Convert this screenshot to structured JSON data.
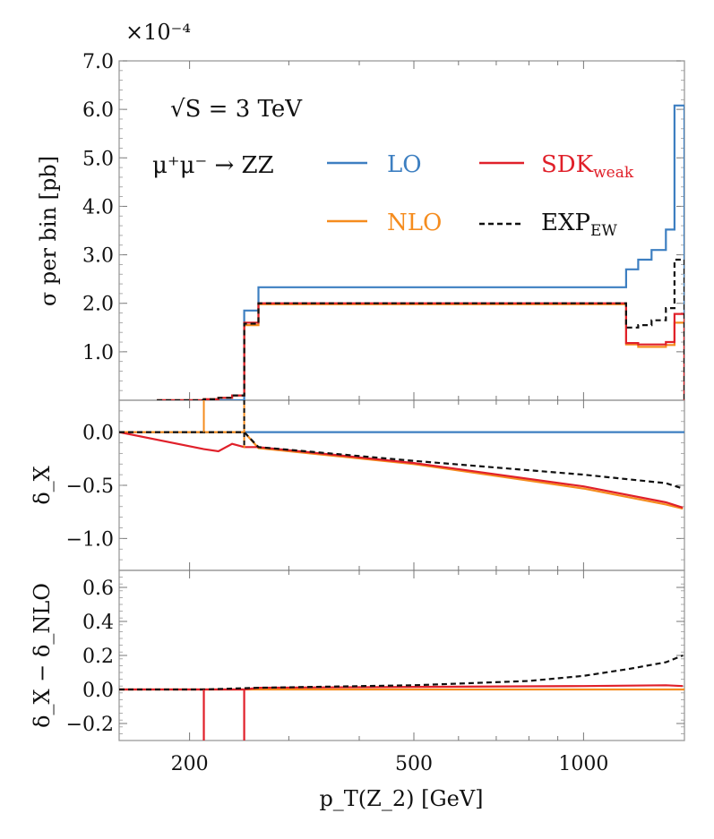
{
  "colors": {
    "LO": "#3d7fc1",
    "NLO": "#f58c1e",
    "SDK": "#e0202a",
    "EXP": "#111111"
  },
  "chart_data": {
    "type": "line",
    "xscale": "log",
    "x_ticks": [
      200,
      500,
      1000
    ],
    "x_tick_labels": [
      "200",
      "500",
      "1000"
    ],
    "xlabel": "p_T(Z_2) [GeV]",
    "xlim": [
      150,
      1510
    ],
    "annotation_energy": "√S = 3 TeV",
    "annotation_process": "μ⁺μ⁻ → ZZ",
    "legend": [
      {
        "name": "LO",
        "color": "#3d7fc1",
        "style": "solid"
      },
      {
        "name": "SDK_weak",
        "color": "#e0202a",
        "style": "solid"
      },
      {
        "name": "NLO",
        "color": "#f58c1e",
        "style": "solid"
      },
      {
        "name": "EXP_EW",
        "color": "#111111",
        "style": "dashed"
      }
    ],
    "panels": [
      {
        "id": "top",
        "ylabel": "σ per bin [pb]",
        "multiplier": "×10⁻⁴",
        "ylim": [
          0,
          7.0
        ],
        "y_ticks": [
          1.0,
          2.0,
          3.0,
          4.0,
          5.0,
          6.0,
          7.0
        ],
        "y_tick_labels": [
          "1.0",
          "2.0",
          "3.0",
          "4.0",
          "5.0",
          "6.0",
          "7.0"
        ],
        "series": [
          {
            "name": "LO",
            "edges": [
              175,
              200,
              212,
              225,
              238,
              250,
              265,
              1190,
              1250,
              1320,
              1400,
              1450,
              1510
            ],
            "values": [
              0,
              0,
              0,
              0,
              0,
              1.85,
              2.33,
              2.7,
              2.9,
              3.1,
              3.52,
              6.08
            ]
          },
          {
            "name": "NLO",
            "edges": [
              175,
              200,
              212,
              225,
              238,
              250,
              265,
              1190,
              1250,
              1320,
              1400,
              1450,
              1510
            ],
            "values": [
              0,
              0,
              0.02,
              0.05,
              0.1,
              1.55,
              1.98,
              1.15,
              1.1,
              1.1,
              1.14,
              1.6
            ]
          },
          {
            "name": "SDK_weak",
            "edges": [
              175,
              200,
              212,
              225,
              238,
              250,
              265,
              1190,
              1250,
              1320,
              1400,
              1450,
              1510
            ],
            "values": [
              0,
              0,
              0.02,
              0.05,
              0.1,
              1.6,
              2.0,
              1.18,
              1.15,
              1.15,
              1.2,
              1.78
            ]
          },
          {
            "name": "EXP_EW",
            "edges": [
              175,
              200,
              212,
              225,
              238,
              250,
              265,
              1190,
              1250,
              1320,
              1400,
              1450,
              1510
            ],
            "values": [
              0,
              0,
              0.02,
              0.05,
              0.1,
              1.58,
              2.0,
              1.5,
              1.55,
              1.65,
              1.9,
              2.9
            ]
          }
        ]
      },
      {
        "id": "middle",
        "ylabel": "δ_X",
        "ylim": [
          -1.3,
          0.3
        ],
        "y_ticks": [
          0.0,
          -0.5,
          -1.0
        ],
        "y_tick_labels": [
          "0.0",
          "−0.5",
          "−1.0"
        ],
        "series": [
          {
            "name": "LO",
            "x": [
              150,
              1510
            ],
            "y": [
              0.0,
              0.0
            ]
          },
          {
            "name": "NLO",
            "x": [
              150,
              200,
              250,
              265,
              500,
              1000,
              1400,
              1500
            ],
            "y": [
              0.0,
              0.0,
              0.0,
              -0.15,
              -0.3,
              -0.53,
              -0.68,
              -0.72
            ]
          },
          {
            "name": "SDK_weak",
            "x": [
              150,
              212,
              225,
              238,
              250,
              265,
              500,
              1000,
              1400,
              1500
            ],
            "y": [
              0.0,
              -0.16,
              -0.18,
              -0.11,
              -0.14,
              -0.14,
              -0.29,
              -0.51,
              -0.66,
              -0.71
            ]
          },
          {
            "name": "EXP_EW",
            "x": [
              150,
              250,
              265,
              500,
              1000,
              1400,
              1500
            ],
            "y": [
              0.0,
              0.0,
              -0.14,
              -0.27,
              -0.4,
              -0.48,
              -0.53
            ]
          }
        ]
      },
      {
        "id": "bottom",
        "ylabel": "δ_X − δ_NLO",
        "ylim": [
          -0.3,
          0.7
        ],
        "y_ticks": [
          0.6,
          0.4,
          0.2,
          0.0,
          -0.2
        ],
        "y_tick_labels": [
          "0.6",
          "0.4",
          "0.2",
          "0.0",
          "−0.2"
        ],
        "series": [
          {
            "name": "NLO",
            "x": [
              150,
              1510
            ],
            "y": [
              0.0,
              0.0
            ]
          },
          {
            "name": "SDK_weak",
            "x": [
              150,
              200,
              250,
              265,
              500,
              1000,
              1400,
              1500
            ],
            "y": [
              0.0,
              0.0,
              0.0,
              0.01,
              0.015,
              0.02,
              0.025,
              0.02
            ]
          },
          {
            "name": "EXP_EW",
            "x": [
              150,
              212,
              265,
              500,
              800,
              1000,
              1200,
              1400,
              1500
            ],
            "y": [
              0.0,
              0.0,
              0.01,
              0.025,
              0.05,
              0.08,
              0.12,
              0.16,
              0.2
            ]
          }
        ]
      }
    ]
  }
}
